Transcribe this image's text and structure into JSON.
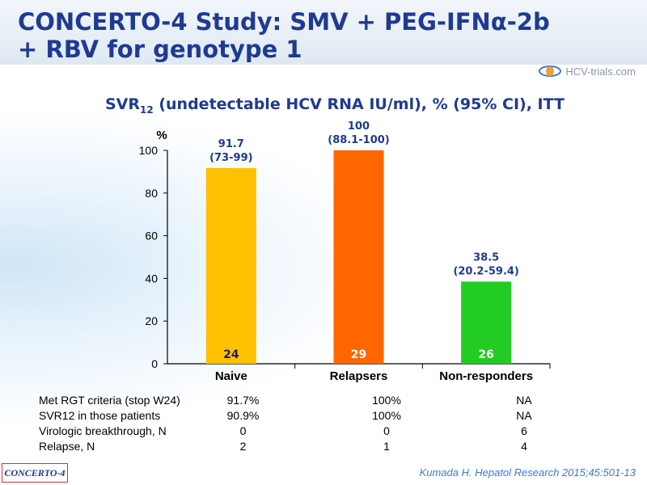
{
  "header": {
    "title": "CONCERTO-4 Study: SMV + PEG-IFNα-2b + RBV for genotype 1",
    "brand": "HCV-trials.com"
  },
  "subtitle": {
    "main": "SVR",
    "sub": "12",
    "rest": " (undetectable HCV RNA IU/ml), % (95% CI), ITT"
  },
  "chart_data": {
    "type": "bar",
    "unit_label": "%",
    "categories": [
      "Naive",
      "Relapsers",
      "Non-responders"
    ],
    "values": [
      91.7,
      100,
      38.5
    ],
    "ci_labels": [
      "(73-99)",
      "(88.1-100)",
      "(20.2-59.4)"
    ],
    "value_labels": [
      "91.7",
      "100",
      "38.5"
    ],
    "n": [
      "24",
      "29",
      "26"
    ],
    "colors": [
      "#ffc000",
      "#ff6600",
      "#22cc22"
    ],
    "n_label_colors": [
      "#1f1f60",
      "#ffffff",
      "#ffffff"
    ],
    "ylim": [
      0,
      100
    ],
    "yticks": [
      0,
      20,
      40,
      60,
      80,
      100
    ],
    "grid": false
  },
  "stats_table": {
    "rows": [
      {
        "label": "Met RGT criteria (stop W24)",
        "values": [
          "91.7%",
          "100%",
          "NA"
        ]
      },
      {
        "label": "SVR12 in those patients",
        "values": [
          "90.9%",
          "100%",
          "NA"
        ]
      },
      {
        "label": "Virologic breakthrough, N",
        "values": [
          "0",
          "0",
          "6"
        ]
      },
      {
        "label": "Relapse, N",
        "values": [
          "2",
          "1",
          "4"
        ]
      }
    ]
  },
  "footer": {
    "study_tag": "CONCERTO-4",
    "citation": "Kumada H. Hepatol Research 2015;45:501-13"
  }
}
